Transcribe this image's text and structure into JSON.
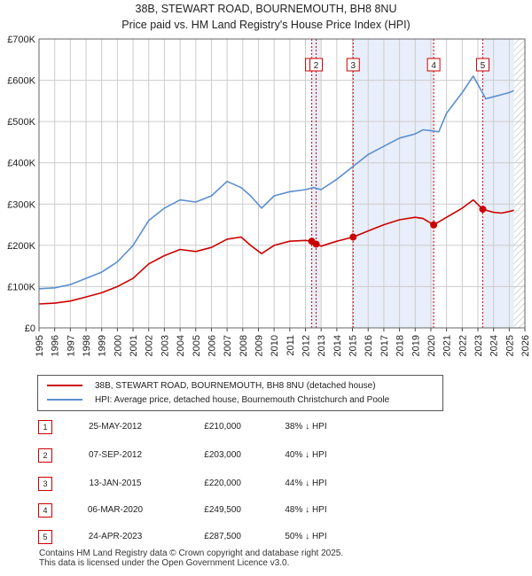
{
  "header": {
    "title": "38B, STEWART ROAD, BOURNEMOUTH, BH8 8NU",
    "subtitle": "Price paid vs. HM Land Registry's House Price Index (HPI)"
  },
  "legend": {
    "property": "38B, STEWART ROAD, BOURNEMOUTH, BH8 8NU (detached house)",
    "hpi": "HPI: Average price, detached house, Bournemouth Christchurch and Poole"
  },
  "colors": {
    "property": "#cc0000",
    "hpi": "#5b8fd0",
    "shade": "#e8eefa",
    "grid": "#cccccc"
  },
  "chart_data": {
    "type": "line",
    "x_range": [
      1995,
      2026
    ],
    "y_range": [
      0,
      700000
    ],
    "y_ticks": [
      {
        "v": 0,
        "label": "£0"
      },
      {
        "v": 100000,
        "label": "£100K"
      },
      {
        "v": 200000,
        "label": "£200K"
      },
      {
        "v": 300000,
        "label": "£300K"
      },
      {
        "v": 400000,
        "label": "£400K"
      },
      {
        "v": 500000,
        "label": "£500K"
      },
      {
        "v": 600000,
        "label": "£600K"
      },
      {
        "v": 700000,
        "label": "£700K"
      }
    ],
    "x_ticks": [
      "1995",
      "1996",
      "1997",
      "1998",
      "1999",
      "2000",
      "2001",
      "2002",
      "2003",
      "2004",
      "2005",
      "2006",
      "2007",
      "2008",
      "2009",
      "2010",
      "2011",
      "2012",
      "2013",
      "2014",
      "2015",
      "2016",
      "2017",
      "2018",
      "2019",
      "2020",
      "2021",
      "2022",
      "2023",
      "2024",
      "2025",
      "2026"
    ],
    "shaded_ranges": [
      [
        2012.4,
        2013.0
      ],
      [
        2015.04,
        2020.18
      ],
      [
        2023.31,
        2025.3
      ]
    ],
    "hatched_from": 2025.3,
    "series": [
      {
        "name": "HPI: Average price, detached house, Bournemouth Christchurch and Poole",
        "x": [
          1995,
          1996,
          1997,
          1998,
          1999,
          2000,
          2001,
          2002,
          2003,
          2004,
          2005,
          2006,
          2007,
          2007.9,
          2008.5,
          2009.2,
          2010,
          2011,
          2012,
          2012.5,
          2013,
          2014,
          2015,
          2016,
          2017,
          2018,
          2019,
          2019.5,
          2020,
          2020.5,
          2021,
          2022,
          2022.7,
          2023,
          2023.5,
          2024,
          2024.5,
          2025,
          2025.3
        ],
        "values": [
          95000,
          97000,
          105000,
          120000,
          135000,
          160000,
          200000,
          260000,
          290000,
          310000,
          305000,
          320000,
          355000,
          340000,
          320000,
          290000,
          320000,
          330000,
          335000,
          340000,
          335000,
          360000,
          390000,
          420000,
          440000,
          460000,
          470000,
          480000,
          478000,
          475000,
          520000,
          570000,
          610000,
          590000,
          555000,
          560000,
          565000,
          570000,
          575000
        ]
      },
      {
        "name": "38B, STEWART ROAD, BOURNEMOUTH, BH8 8NU (detached house)",
        "x": [
          1995,
          1996,
          1997,
          1998,
          1999,
          2000,
          2001,
          2002,
          2003,
          2004,
          2005,
          2006,
          2007,
          2007.9,
          2008.5,
          2009.2,
          2010,
          2011,
          2012,
          2012.4,
          2012.7,
          2013,
          2014,
          2015.04,
          2016,
          2017,
          2018,
          2019,
          2019.5,
          2020.18,
          2021,
          2022,
          2022.7,
          2023.31,
          2024,
          2024.5,
          2025,
          2025.3
        ],
        "values": [
          58000,
          60000,
          65000,
          75000,
          85000,
          100000,
          120000,
          155000,
          175000,
          190000,
          185000,
          195000,
          215000,
          220000,
          200000,
          180000,
          200000,
          210000,
          212000,
          210000,
          203000,
          198000,
          210000,
          220000,
          235000,
          250000,
          262000,
          268000,
          265000,
          249500,
          268000,
          290000,
          310000,
          287500,
          280000,
          278000,
          282000,
          285000
        ]
      }
    ],
    "sales": [
      {
        "n": "1",
        "x": 2012.4,
        "value": 210000
      },
      {
        "n": "2",
        "x": 2012.68,
        "value": 203000
      },
      {
        "n": "3",
        "x": 2015.04,
        "value": 220000
      },
      {
        "n": "4",
        "x": 2020.18,
        "value": 249500
      },
      {
        "n": "5",
        "x": 2023.31,
        "value": 287500
      }
    ]
  },
  "sales_table": [
    {
      "num": "1",
      "date": "25-MAY-2012",
      "price": "£210,000",
      "hpi": "38% ↓ HPI"
    },
    {
      "num": "2",
      "date": "07-SEP-2012",
      "price": "£203,000",
      "hpi": "40% ↓ HPI"
    },
    {
      "num": "3",
      "date": "13-JAN-2015",
      "price": "£220,000",
      "hpi": "44% ↓ HPI"
    },
    {
      "num": "4",
      "date": "06-MAR-2020",
      "price": "£249,500",
      "hpi": "48% ↓ HPI"
    },
    {
      "num": "5",
      "date": "24-APR-2023",
      "price": "£287,500",
      "hpi": "50% ↓ HPI"
    }
  ],
  "footer": {
    "line1": "Contains HM Land Registry data © Crown copyright and database right 2025.",
    "line2": "This data is licensed under the Open Government Licence v3.0."
  }
}
